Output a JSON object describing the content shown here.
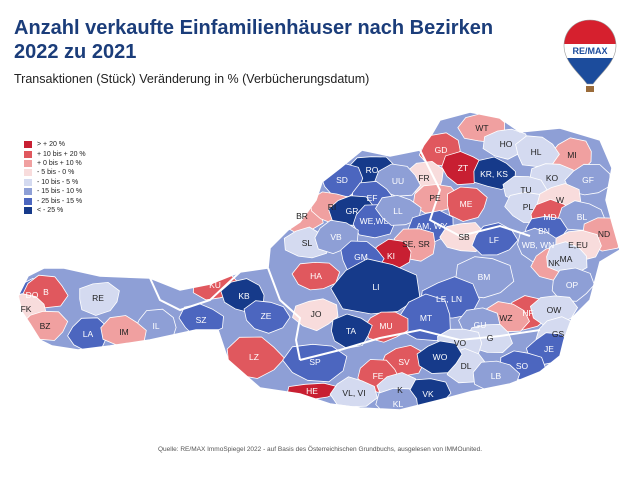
{
  "header": {
    "title_line1": "Anzahl verkaufte Einfamilienhäuser nach Bezirken",
    "title_line2": "2022 zu 2021",
    "subtitle": "Transaktionen (Stück) Veränderung in % (Verbücherungsdatum)"
  },
  "logo": {
    "text": "RE/MAX",
    "colors": {
      "red": "#d6202e",
      "blue": "#1c4c9c",
      "white": "#ffffff"
    }
  },
  "legend": {
    "items": [
      {
        "label": "> + 20  %",
        "color": "#c81f32"
      },
      {
        "label": "+ 10  bis  + 20  %",
        "color": "#e0585e"
      },
      {
        "label": "+  0  bis  + 10  %",
        "color": "#f0a0a0"
      },
      {
        "label": "-  5  bis  -  0  %",
        "color": "#f8dcdc"
      },
      {
        "label": "- 10  bis  -  5  %",
        "color": "#d4daf0"
      },
      {
        "label": "- 15  bis  - 10  %",
        "color": "#8e9fd6"
      },
      {
        "label": "- 25  bis  - 15  %",
        "color": "#4c66bf"
      },
      {
        "label": "<  - 25  %",
        "color": "#163a8a"
      }
    ]
  },
  "districts": [
    {
      "code": "WT",
      "color": "#f0a0a0"
    },
    {
      "code": "GD",
      "color": "#e0585e"
    },
    {
      "code": "ZT",
      "color": "#c81f32"
    },
    {
      "code": "HO",
      "color": "#d4daf0"
    },
    {
      "code": "MI",
      "color": "#f0a0a0"
    },
    {
      "code": "HL",
      "color": "#d4daf0"
    },
    {
      "code": "RO",
      "color": "#163a8a"
    },
    {
      "code": "FR",
      "color": "#f8dcdc"
    },
    {
      "code": "KR, KS",
      "color": "#163a8a"
    },
    {
      "code": "KO",
      "color": "#d4daf0"
    },
    {
      "code": "SD",
      "color": "#4c66bf"
    },
    {
      "code": "UU",
      "color": "#8e9fd6"
    },
    {
      "code": "PE",
      "color": "#f0a0a0"
    },
    {
      "code": "ME",
      "color": "#e0585e"
    },
    {
      "code": "TU",
      "color": "#d4daf0"
    },
    {
      "code": "GF",
      "color": "#8e9fd6"
    },
    {
      "code": "EF",
      "color": "#4c66bf"
    },
    {
      "code": "PL",
      "color": "#d4daf0"
    },
    {
      "code": "W",
      "color": "#f8dcdc"
    },
    {
      "code": "BR",
      "color": "#f0a0a0"
    },
    {
      "code": "RI",
      "color": "#f0a0a0"
    },
    {
      "code": "GR",
      "color": "#163a8a"
    },
    {
      "code": "WE,WL",
      "color": "#4c66bf"
    },
    {
      "code": "LL",
      "color": "#8e9fd6"
    },
    {
      "code": "AM, WY",
      "color": "#4c66bf"
    },
    {
      "code": "MD",
      "color": "#e0585e"
    },
    {
      "code": "BL",
      "color": "#8e9fd6"
    },
    {
      "code": "BN",
      "color": "#4c66bf"
    },
    {
      "code": "ND",
      "color": "#f0a0a0"
    },
    {
      "code": "SL",
      "color": "#d4daf0"
    },
    {
      "code": "VB",
      "color": "#8e9fd6"
    },
    {
      "code": "SE, SR",
      "color": "#f0a0a0"
    },
    {
      "code": "SB",
      "color": "#f8dcdc"
    },
    {
      "code": "LF",
      "color": "#4c66bf"
    },
    {
      "code": "WB, WN",
      "color": "#8e9fd6"
    },
    {
      "code": "E,EU",
      "color": "#f8dcdc"
    },
    {
      "code": "KI",
      "color": "#c81f32"
    },
    {
      "code": "GM",
      "color": "#4c66bf"
    },
    {
      "code": "HA",
      "color": "#e0585e"
    },
    {
      "code": "NK",
      "color": "#f0a0a0"
    },
    {
      "code": "MA",
      "color": "#d4daf0"
    },
    {
      "code": "BM",
      "color": "#8e9fd6"
    },
    {
      "code": "DO",
      "color": "#4c66bf"
    },
    {
      "code": "B",
      "color": "#e0585e"
    },
    {
      "code": "KU",
      "color": "#e0585e"
    },
    {
      "code": "RE",
      "color": "#d4daf0"
    },
    {
      "code": "KB",
      "color": "#163a8a"
    },
    {
      "code": "LI",
      "color": "#163a8a"
    },
    {
      "code": "OP",
      "color": "#8e9fd6"
    },
    {
      "code": "FK",
      "color": "#f8dcdc"
    },
    {
      "code": "LE, LN",
      "color": "#4c66bf"
    },
    {
      "code": "HF",
      "color": "#e0585e"
    },
    {
      "code": "ZE",
      "color": "#4c66bf"
    },
    {
      "code": "BZ",
      "color": "#f0a0a0"
    },
    {
      "code": "IL",
      "color": "#8e9fd6"
    },
    {
      "code": "SZ",
      "color": "#4c66bf"
    },
    {
      "code": "JO",
      "color": "#f8dcdc"
    },
    {
      "code": "MT",
      "color": "#4c66bf"
    },
    {
      "code": "WZ",
      "color": "#f0a0a0"
    },
    {
      "code": "OW",
      "color": "#d4daf0"
    },
    {
      "code": "LA",
      "color": "#4c66bf"
    },
    {
      "code": "IM",
      "color": "#f0a0a0"
    },
    {
      "code": "MU",
      "color": "#e0585e"
    },
    {
      "code": "GU",
      "color": "#8e9fd6"
    },
    {
      "code": "G",
      "color": "#d4daf0"
    },
    {
      "code": "GS",
      "color": "#d4daf0"
    },
    {
      "code": "TA",
      "color": "#163a8a"
    },
    {
      "code": "VO",
      "color": "#d4daf0"
    },
    {
      "code": "JE",
      "color": "#4c66bf"
    },
    {
      "code": "LZ",
      "color": "#e0585e"
    },
    {
      "code": "SP",
      "color": "#4c66bf"
    },
    {
      "code": "SV",
      "color": "#e0585e"
    },
    {
      "code": "DL",
      "color": "#d4daf0"
    },
    {
      "code": "SO",
      "color": "#4c66bf"
    },
    {
      "code": "WO",
      "color": "#163a8a"
    },
    {
      "code": "FE",
      "color": "#e0585e"
    },
    {
      "code": "LB",
      "color": "#8e9fd6"
    },
    {
      "code": "HE",
      "color": "#c81f32"
    },
    {
      "code": "K",
      "color": "#d4daf0"
    },
    {
      "code": "VL, VI",
      "color": "#d4daf0"
    },
    {
      "code": "VK",
      "color": "#163a8a"
    },
    {
      "code": "KL",
      "color": "#8e9fd6"
    }
  ],
  "source": "Quelle: RE/MAX ImmoSpiegel 2022 - auf Basis des Österreichischen Grundbuchs, ausgelesen von IMMOunited."
}
